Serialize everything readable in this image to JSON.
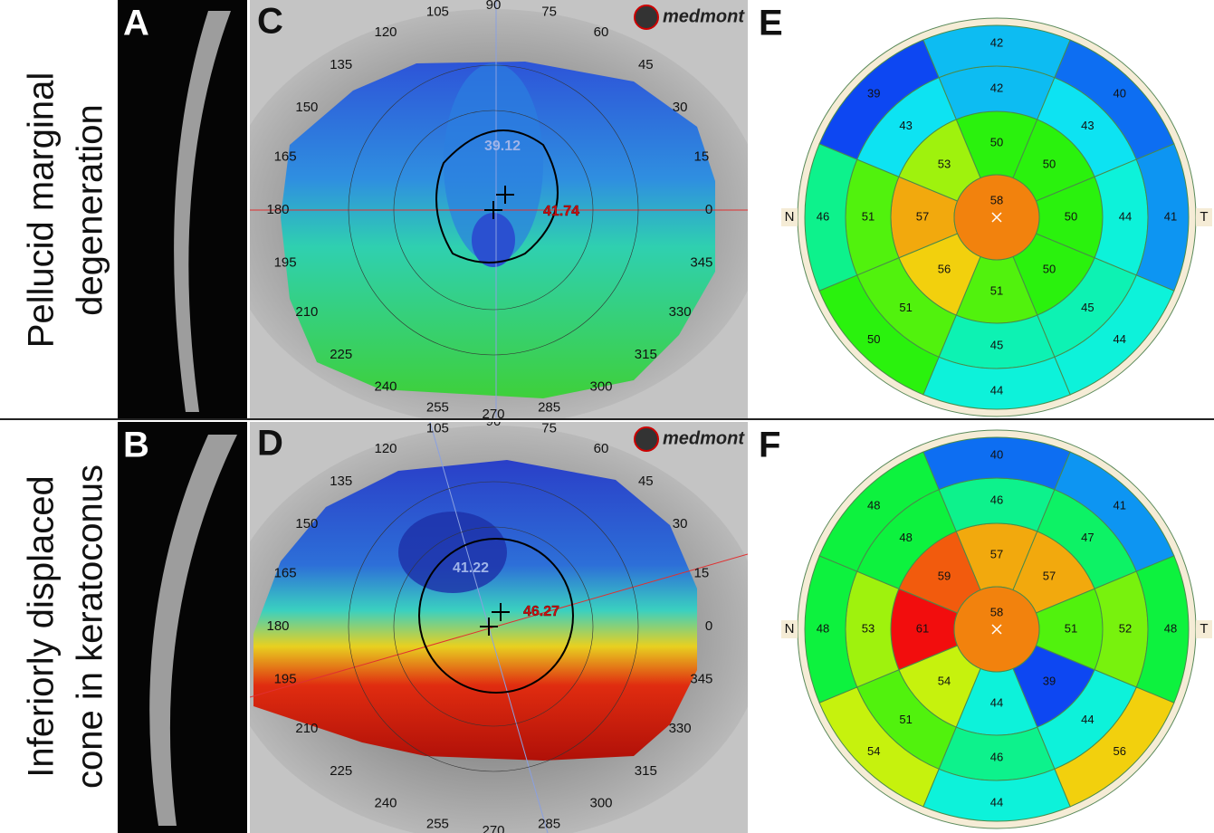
{
  "row_labels": [
    [
      "Pellucid marginal",
      "degeneration"
    ],
    [
      "Inferiorly displaced",
      "cone in keratoconus"
    ]
  ],
  "oct": [
    {
      "letter": "A"
    },
    {
      "letter": "B"
    }
  ],
  "topography": [
    {
      "letter": "C",
      "brand": "medmont",
      "angles": [
        0,
        15,
        30,
        45,
        60,
        75,
        90,
        105,
        120,
        135,
        150,
        165,
        180,
        195,
        210,
        225,
        240,
        255,
        270,
        285,
        300,
        315,
        330,
        345
      ],
      "flat_k": 39.12,
      "steep_k": 41.74
    },
    {
      "letter": "D",
      "brand": "medmont",
      "angles": [
        0,
        15,
        30,
        45,
        60,
        75,
        90,
        105,
        120,
        135,
        150,
        165,
        180,
        195,
        210,
        225,
        240,
        255,
        270,
        285,
        300,
        315,
        330,
        345
      ],
      "flat_k": 41.22,
      "steep_k": 46.27
    }
  ],
  "pachymetry": [
    {
      "letter": "E",
      "nasal": "N",
      "temporal": "T",
      "center": 58,
      "rings": [
        [
          50,
          50,
          50,
          50,
          51,
          56,
          57,
          53
        ],
        [
          42,
          43,
          44,
          45,
          45,
          51,
          51,
          43
        ],
        [
          42,
          40,
          41,
          44,
          44,
          50,
          46,
          39
        ]
      ]
    },
    {
      "letter": "F",
      "nasal": "N",
      "temporal": "T",
      "center": 58,
      "rings": [
        [
          57,
          57,
          51,
          39,
          44,
          54,
          61,
          59
        ],
        [
          46,
          47,
          52,
          44,
          46,
          51,
          53,
          48
        ],
        [
          40,
          41,
          48,
          56,
          44,
          54,
          48,
          48
        ]
      ]
    }
  ]
}
